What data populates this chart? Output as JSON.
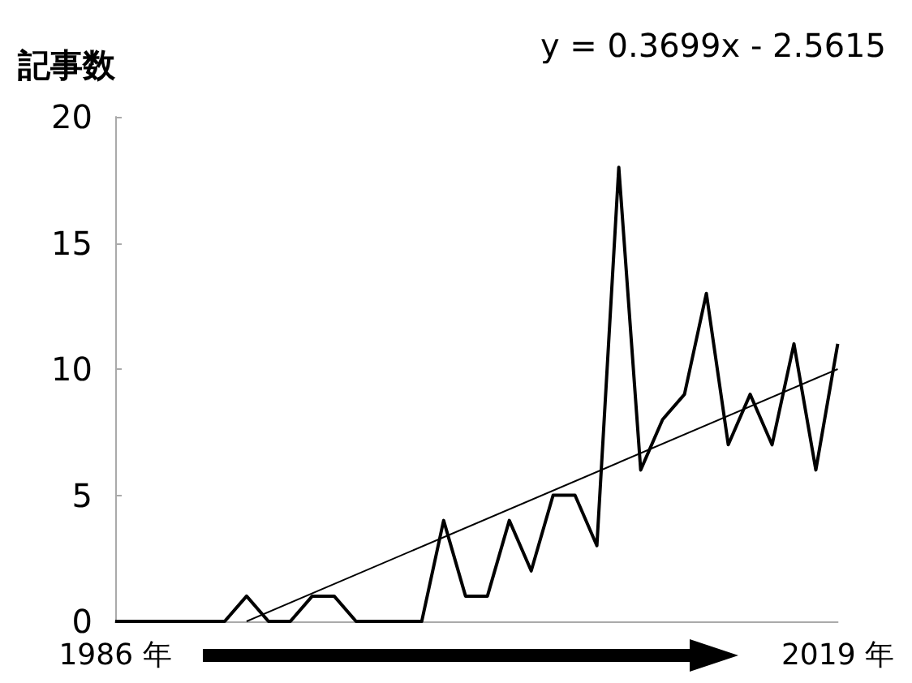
{
  "chart_data": {
    "type": "line",
    "ylabel": "記事数",
    "annotations": [
      "y = 0.3699x - 2.5615"
    ],
    "categories": [
      "1986 年",
      null,
      null,
      null,
      null,
      null,
      null,
      null,
      null,
      null,
      null,
      null,
      null,
      null,
      null,
      null,
      null,
      null,
      null,
      null,
      null,
      null,
      null,
      null,
      null,
      null,
      null,
      null,
      null,
      null,
      null,
      null,
      null,
      "2019 年"
    ],
    "series": [
      {
        "color": "#000000",
        "values": [
          0,
          0,
          0,
          0,
          0,
          0,
          1,
          0,
          0,
          1,
          1,
          0,
          0,
          0,
          0,
          4,
          1,
          1,
          4,
          2,
          5,
          5,
          3,
          18,
          6,
          8,
          9,
          13,
          7,
          9,
          7,
          11,
          6,
          11
        ]
      },
      {
        "color": "#000000",
        "line_style": "solid",
        "values": [
          null,
          null,
          null,
          null,
          null,
          null,
          0,
          null,
          null,
          null,
          null,
          null,
          null,
          null,
          null,
          null,
          null,
          null,
          null,
          null,
          null,
          null,
          null,
          null,
          null,
          null,
          null,
          null,
          null,
          null,
          null,
          null,
          null,
          10
        ]
      }
    ],
    "ylim": [
      0,
      20
    ],
    "yticks": [
      0,
      5,
      10,
      15,
      20
    ],
    "grid": false,
    "marker": "none"
  }
}
